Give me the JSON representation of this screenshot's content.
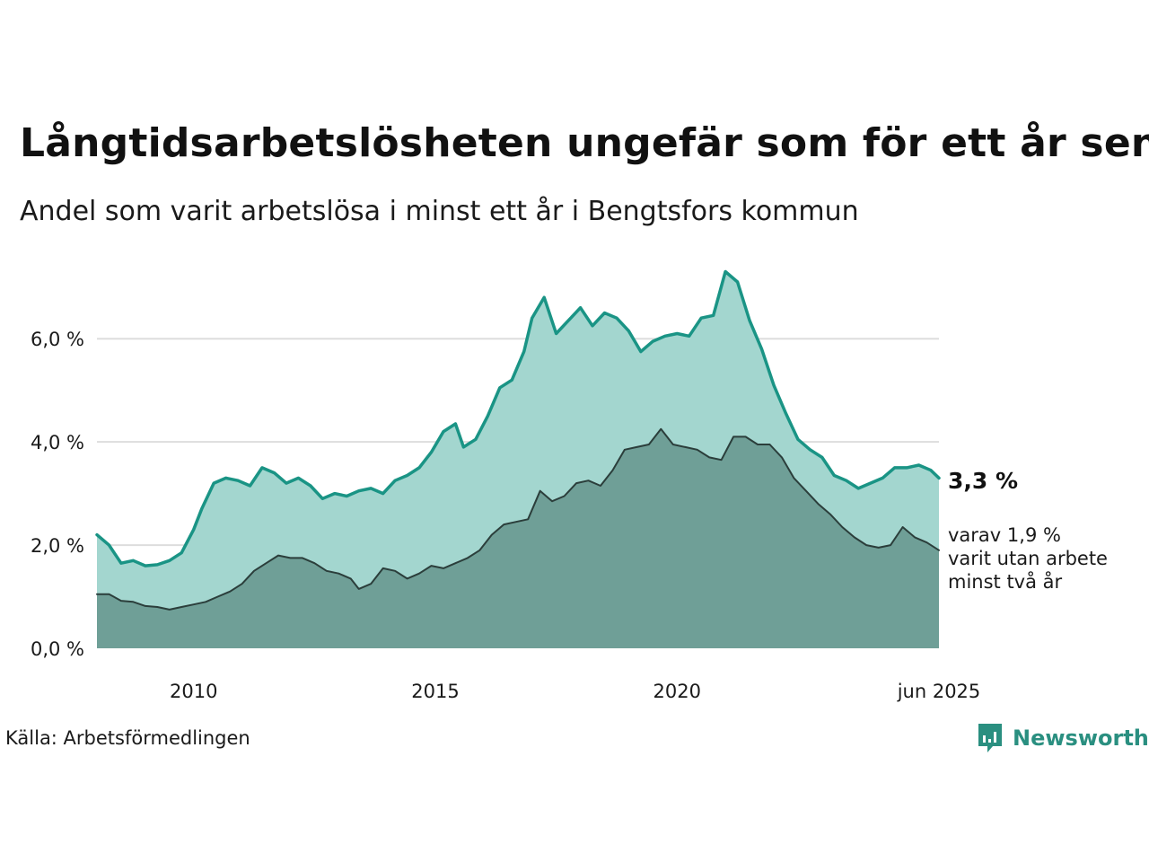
{
  "title": "Långtidsarbetslösheten ungefär som för ett år sen",
  "subtitle": "Andel som varit arbetslösa i minst ett år i Bengtsfors kommun",
  "source": "Källa: Arbetsförmedlingen",
  "brand": "Newsworthy",
  "colors": {
    "total_line": "#1a9485",
    "total_fill": "#a3d6cf",
    "two_year_line": "#2b3e3b",
    "two_year_fill": "#6f9f97",
    "grid": "#dddddd",
    "brand": "#2a8f80"
  },
  "chart_data": {
    "type": "area",
    "xlim": [
      "2008-01",
      "2025-06"
    ],
    "ylim": [
      0,
      7.5
    ],
    "y_ticks": [
      0,
      2,
      4,
      6
    ],
    "y_tick_labels": [
      "0,0 %",
      "2,0 %",
      "4,0 %",
      "6,0 %"
    ],
    "x_ticks": [
      "2010-01",
      "2015-01",
      "2020-01",
      "2025-06"
    ],
    "x_tick_labels": [
      "2010",
      "2015",
      "2020",
      "jun 2025"
    ],
    "grid": true,
    "series": [
      {
        "name": "",
        "points": [
          [
            "2008-01",
            2.2
          ],
          [
            "2008-04",
            2.0
          ],
          [
            "2008-07",
            1.65
          ],
          [
            "2008-10",
            1.7
          ],
          [
            "2009-01",
            1.6
          ],
          [
            "2009-04",
            1.62
          ],
          [
            "2009-07",
            1.7
          ],
          [
            "2009-10",
            1.85
          ],
          [
            "2010-01",
            2.3
          ],
          [
            "2010-03",
            2.7
          ],
          [
            "2010-06",
            3.2
          ],
          [
            "2010-09",
            3.3
          ],
          [
            "2010-12",
            3.25
          ],
          [
            "2011-03",
            3.15
          ],
          [
            "2011-06",
            3.5
          ],
          [
            "2011-09",
            3.4
          ],
          [
            "2011-12",
            3.2
          ],
          [
            "2012-03",
            3.3
          ],
          [
            "2012-06",
            3.15
          ],
          [
            "2012-09",
            2.9
          ],
          [
            "2012-12",
            3.0
          ],
          [
            "2013-03",
            2.95
          ],
          [
            "2013-06",
            3.05
          ],
          [
            "2013-09",
            3.1
          ],
          [
            "2013-12",
            3.0
          ],
          [
            "2014-03",
            3.25
          ],
          [
            "2014-06",
            3.35
          ],
          [
            "2014-09",
            3.5
          ],
          [
            "2014-12",
            3.8
          ],
          [
            "2015-03",
            4.2
          ],
          [
            "2015-06",
            4.35
          ],
          [
            "2015-08",
            3.9
          ],
          [
            "2015-11",
            4.05
          ],
          [
            "2016-02",
            4.5
          ],
          [
            "2016-05",
            5.05
          ],
          [
            "2016-08",
            5.2
          ],
          [
            "2016-11",
            5.75
          ],
          [
            "2017-01",
            6.4
          ],
          [
            "2017-04",
            6.8
          ],
          [
            "2017-07",
            6.1
          ],
          [
            "2017-10",
            6.35
          ],
          [
            "2018-01",
            6.6
          ],
          [
            "2018-04",
            6.25
          ],
          [
            "2018-07",
            6.5
          ],
          [
            "2018-10",
            6.4
          ],
          [
            "2019-01",
            6.15
          ],
          [
            "2019-04",
            5.75
          ],
          [
            "2019-07",
            5.95
          ],
          [
            "2019-10",
            6.05
          ],
          [
            "2020-01",
            6.1
          ],
          [
            "2020-04",
            6.05
          ],
          [
            "2020-07",
            6.4
          ],
          [
            "2020-10",
            6.45
          ],
          [
            "2021-01",
            7.3
          ],
          [
            "2021-04",
            7.1
          ],
          [
            "2021-07",
            6.35
          ],
          [
            "2021-10",
            5.8
          ],
          [
            "2022-01",
            5.1
          ],
          [
            "2022-04",
            4.55
          ],
          [
            "2022-07",
            4.05
          ],
          [
            "2022-10",
            3.85
          ],
          [
            "2023-01",
            3.7
          ],
          [
            "2023-04",
            3.35
          ],
          [
            "2023-07",
            3.25
          ],
          [
            "2023-10",
            3.1
          ],
          [
            "2024-01",
            3.2
          ],
          [
            "2024-04",
            3.3
          ],
          [
            "2024-07",
            3.5
          ],
          [
            "2024-10",
            3.5
          ],
          [
            "2025-01",
            3.55
          ],
          [
            "2025-04",
            3.45
          ],
          [
            "2025-06",
            3.3
          ]
        ]
      },
      {
        "name": "",
        "points": [
          [
            "2008-01",
            1.05
          ],
          [
            "2008-04",
            1.05
          ],
          [
            "2008-07",
            0.92
          ],
          [
            "2008-10",
            0.9
          ],
          [
            "2009-01",
            0.82
          ],
          [
            "2009-04",
            0.8
          ],
          [
            "2009-07",
            0.75
          ],
          [
            "2009-10",
            0.8
          ],
          [
            "2010-01",
            0.85
          ],
          [
            "2010-04",
            0.9
          ],
          [
            "2010-07",
            1.0
          ],
          [
            "2010-10",
            1.1
          ],
          [
            "2011-01",
            1.25
          ],
          [
            "2011-04",
            1.5
          ],
          [
            "2011-07",
            1.65
          ],
          [
            "2011-10",
            1.8
          ],
          [
            "2012-01",
            1.75
          ],
          [
            "2012-04",
            1.75
          ],
          [
            "2012-07",
            1.65
          ],
          [
            "2012-10",
            1.5
          ],
          [
            "2013-01",
            1.45
          ],
          [
            "2013-04",
            1.35
          ],
          [
            "2013-06",
            1.15
          ],
          [
            "2013-09",
            1.25
          ],
          [
            "2013-12",
            1.55
          ],
          [
            "2014-03",
            1.5
          ],
          [
            "2014-06",
            1.35
          ],
          [
            "2014-09",
            1.45
          ],
          [
            "2014-12",
            1.6
          ],
          [
            "2015-03",
            1.55
          ],
          [
            "2015-06",
            1.65
          ],
          [
            "2015-09",
            1.75
          ],
          [
            "2015-12",
            1.9
          ],
          [
            "2016-03",
            2.2
          ],
          [
            "2016-06",
            2.4
          ],
          [
            "2016-09",
            2.45
          ],
          [
            "2016-12",
            2.5
          ],
          [
            "2017-03",
            3.05
          ],
          [
            "2017-06",
            2.85
          ],
          [
            "2017-09",
            2.95
          ],
          [
            "2017-12",
            3.2
          ],
          [
            "2018-03",
            3.25
          ],
          [
            "2018-06",
            3.15
          ],
          [
            "2018-09",
            3.45
          ],
          [
            "2018-12",
            3.85
          ],
          [
            "2019-03",
            3.9
          ],
          [
            "2019-06",
            3.95
          ],
          [
            "2019-09",
            4.25
          ],
          [
            "2019-12",
            3.95
          ],
          [
            "2020-03",
            3.9
          ],
          [
            "2020-06",
            3.85
          ],
          [
            "2020-09",
            3.7
          ],
          [
            "2020-12",
            3.65
          ],
          [
            "2021-03",
            4.1
          ],
          [
            "2021-06",
            4.1
          ],
          [
            "2021-09",
            3.95
          ],
          [
            "2021-12",
            3.95
          ],
          [
            "2022-03",
            3.7
          ],
          [
            "2022-06",
            3.3
          ],
          [
            "2022-09",
            3.05
          ],
          [
            "2022-12",
            2.8
          ],
          [
            "2023-03",
            2.6
          ],
          [
            "2023-06",
            2.35
          ],
          [
            "2023-09",
            2.15
          ],
          [
            "2023-12",
            2.0
          ],
          [
            "2024-03",
            1.95
          ],
          [
            "2024-06",
            2.0
          ],
          [
            "2024-09",
            2.35
          ],
          [
            "2024-12",
            2.15
          ],
          [
            "2025-03",
            2.05
          ],
          [
            "2025-06",
            1.9
          ]
        ]
      }
    ],
    "annotations": {
      "total_value": "3,3 %",
      "two_year_lines": [
        "varav 1,9 %",
        "varit utan arbete",
        "minst två år"
      ]
    }
  }
}
